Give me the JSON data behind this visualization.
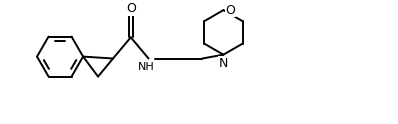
{
  "bg_color": "#ffffff",
  "line_color": "#000000",
  "lw": 1.4,
  "fs": 8,
  "fig_width": 3.98,
  "fig_height": 1.24,
  "dpi": 100,
  "xlim": [
    0,
    10
  ],
  "ylim": [
    0,
    3.1
  ]
}
